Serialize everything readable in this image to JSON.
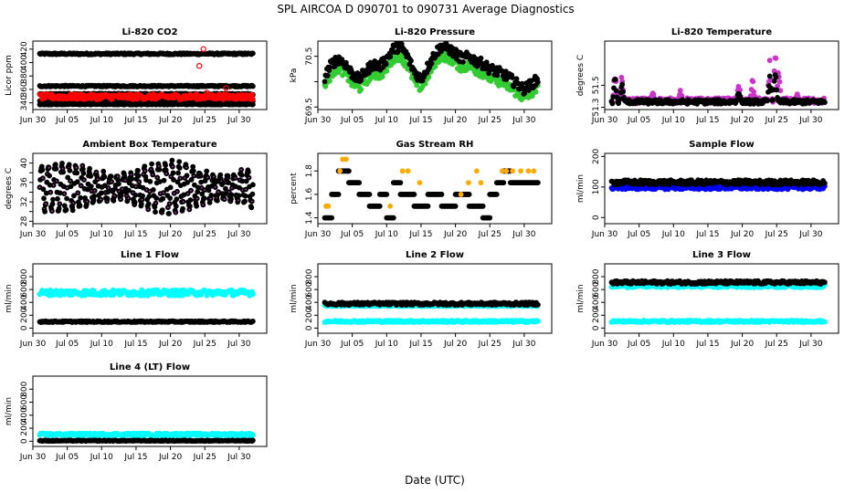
{
  "figure": {
    "title": "SPL   AIRCOA D   090701 to 090731   Average Diagnostics",
    "xlabel": "Date (UTC)"
  },
  "chart_data": [
    {
      "id": "co2",
      "type": "scatter",
      "title": "Li-820 CO2",
      "ylabel": "Licor ppm",
      "ylim": [
        330,
        432
      ],
      "yticks": [
        340,
        360,
        380,
        400,
        420
      ],
      "xticks": [
        "Jun 30",
        "Jul 05",
        "Jul 10",
        "Jul 15",
        "Jul 20",
        "Jul 25",
        "Jul 30"
      ],
      "xlim": [
        0,
        34
      ],
      "xdata_range": [
        1,
        32
      ],
      "series": [
        {
          "name": "level 413",
          "color": "#000000",
          "kind": "band",
          "center": 413,
          "spread": 1.2
        },
        {
          "name": "level 365",
          "color": "#000000",
          "kind": "band",
          "center": 365,
          "spread": 1.0
        },
        {
          "name": "level 353",
          "color": "#000000",
          "kind": "band",
          "center": 353,
          "spread": 1.0
        },
        {
          "name": "level 343",
          "color": "#000000",
          "kind": "band",
          "center": 343,
          "spread": 1.0
        },
        {
          "name": "level 338",
          "color": "#000000",
          "kind": "band",
          "center": 338,
          "spread": 0.8
        },
        {
          "name": "sample",
          "color": "#ff0000",
          "kind": "band",
          "center": 349,
          "spread": 4
        },
        {
          "name": "outliers",
          "color": "#ff0000",
          "kind": "points",
          "open": true,
          "x": [
            24.2,
            24.8,
            25.3,
            28.1
          ],
          "y": [
            395,
            420,
            355,
            362
          ]
        }
      ]
    },
    {
      "id": "pressure",
      "type": "scatter",
      "title": "Li-820 Pressure",
      "ylabel": "kPa",
      "ylim": [
        69.45,
        70.8
      ],
      "yticks": [
        69.5,
        70.0,
        70.5
      ],
      "ytick_labels": [
        "69.5",
        "",
        "70.5"
      ],
      "xticks": [
        "Jun 30",
        "Jul 05",
        "Jul 10",
        "Jul 15",
        "Jul 20",
        "Jul 25",
        "Jul 30"
      ],
      "xlim": [
        0,
        34
      ],
      "xdata_range": [
        1,
        32
      ],
      "series": [
        {
          "name": "green",
          "color": "#33cc33",
          "kind": "curve",
          "offset": -0.18,
          "spread": 0.09,
          "x": [
            1,
            2,
            3,
            4,
            5,
            6,
            7,
            8,
            9,
            10,
            11,
            12,
            13,
            14,
            15,
            16,
            17,
            18,
            19,
            20,
            21,
            22,
            23,
            24,
            25,
            26,
            27,
            28,
            29,
            30,
            31,
            32
          ],
          "y": [
            70.1,
            70.35,
            70.45,
            70.35,
            70.15,
            70.05,
            70.2,
            70.35,
            70.3,
            70.45,
            70.65,
            70.7,
            70.5,
            70.2,
            70.05,
            70.3,
            70.55,
            70.7,
            70.65,
            70.55,
            70.45,
            70.5,
            70.4,
            70.35,
            70.25,
            70.2,
            70.15,
            70.05,
            69.95,
            69.85,
            69.95,
            70.05
          ]
        },
        {
          "name": "black",
          "color": "#000000",
          "kind": "curve",
          "offset": 0.0,
          "spread": 0.1,
          "x": [
            1,
            2,
            3,
            4,
            5,
            6,
            7,
            8,
            9,
            10,
            11,
            12,
            13,
            14,
            15,
            16,
            17,
            18,
            19,
            20,
            21,
            22,
            23,
            24,
            25,
            26,
            27,
            28,
            29,
            30,
            31,
            32
          ],
          "y": [
            70.1,
            70.35,
            70.45,
            70.35,
            70.15,
            70.05,
            70.2,
            70.35,
            70.3,
            70.45,
            70.65,
            70.7,
            70.5,
            70.2,
            70.05,
            70.3,
            70.55,
            70.7,
            70.65,
            70.55,
            70.45,
            70.5,
            70.4,
            70.35,
            70.25,
            70.2,
            70.15,
            70.05,
            69.95,
            69.85,
            69.95,
            70.05
          ]
        }
      ]
    },
    {
      "id": "temp",
      "type": "scatter",
      "title": "Li-820 Temperature",
      "ylabel": "degrees C",
      "ylim": [
        51.28,
        51.9
      ],
      "yticks": [
        51.3,
        51.5
      ],
      "ytick_labels": [
        "51.3",
        "51.5"
      ],
      "xticks": [
        "Jun 30",
        "Jul 05",
        "Jul 10",
        "Jul 15",
        "Jul 20",
        "Jul 25",
        "Jul 30"
      ],
      "xlim": [
        0,
        34
      ],
      "xdata_range": [
        1,
        32
      ],
      "series": [
        {
          "name": "magenta",
          "color": "#cc33cc",
          "kind": "spiky",
          "base": 51.36,
          "spread": 0.025,
          "spikes": [
            [
              1.5,
              51.72
            ],
            [
              2.5,
              51.62
            ],
            [
              7,
              51.45
            ],
            [
              11,
              51.48
            ],
            [
              19.5,
              51.55
            ],
            [
              21.5,
              51.58
            ],
            [
              24,
              51.75
            ],
            [
              24.8,
              51.88
            ],
            [
              25.3,
              51.7
            ],
            [
              28,
              51.42
            ]
          ]
        },
        {
          "name": "black",
          "color": "#000000",
          "kind": "spiky",
          "base": 51.35,
          "spread": 0.02,
          "spikes": [
            [
              1.5,
              51.6
            ],
            [
              2.5,
              51.55
            ],
            [
              19.5,
              51.48
            ],
            [
              24,
              51.65
            ],
            [
              24.8,
              51.72
            ]
          ]
        }
      ]
    },
    {
      "id": "ambient",
      "type": "scatter",
      "title": "Ambient Box Temperature",
      "ylabel": "degrees C",
      "ylim": [
        27.5,
        42
      ],
      "yticks": [
        28,
        30,
        32,
        34,
        36,
        38,
        40
      ],
      "ytick_labels": [
        "28",
        "",
        "32",
        "",
        "36",
        "",
        "40"
      ],
      "xticks": [
        "Jun 30",
        "Jul 05",
        "Jul 10",
        "Jul 15",
        "Jul 20",
        "Jul 25",
        "Jul 30"
      ],
      "xlim": [
        0,
        34
      ],
      "xdata_range": [
        1,
        32
      ],
      "series": [
        {
          "name": "black",
          "color": "#000000",
          "kind": "diurnal",
          "low": 30,
          "high": 40,
          "dots": "#cc33cc"
        }
      ]
    },
    {
      "id": "rh",
      "type": "scatter",
      "title": "Gas Stream RH",
      "ylabel": "percent",
      "ylim": [
        1.35,
        1.95
      ],
      "yticks": [
        1.4,
        1.6,
        1.8
      ],
      "ytick_labels": [
        "1.4",
        "1.6",
        "1.8"
      ],
      "xticks": [
        "Jun 30",
        "Jul 05",
        "Jul 10",
        "Jul 15",
        "Jul 20",
        "Jul 25",
        "Jul 30"
      ],
      "xlim": [
        0,
        34
      ],
      "xdata_range": [
        1,
        32
      ],
      "series": [
        {
          "name": "black",
          "color": "#000000",
          "kind": "steps",
          "segments": [
            [
              1,
              2,
              1.4
            ],
            [
              2,
              3,
              1.6
            ],
            [
              3,
              4.5,
              1.8
            ],
            [
              4.5,
              6,
              1.7
            ],
            [
              6,
              7.5,
              1.6
            ],
            [
              7.5,
              9,
              1.5
            ],
            [
              9,
              10,
              1.6
            ],
            [
              10,
              11,
              1.4
            ],
            [
              11,
              12,
              1.7
            ],
            [
              12,
              14,
              1.6
            ],
            [
              14,
              16,
              1.5
            ],
            [
              16,
              18,
              1.6
            ],
            [
              18,
              20,
              1.5
            ],
            [
              20,
              22,
              1.6
            ],
            [
              22,
              24,
              1.5
            ],
            [
              24,
              25,
              1.4
            ],
            [
              25,
              26,
              1.6
            ],
            [
              26,
              27,
              1.7
            ],
            [
              27,
              28,
              1.8
            ],
            [
              28,
              32,
              1.7
            ]
          ]
        },
        {
          "name": "orange",
          "color": "#ffaa00",
          "kind": "points",
          "open": false,
          "x": [
            3.2,
            3.6,
            4.1,
            12.3,
            13.1,
            14.8,
            21.9,
            23.1,
            23.7,
            26.8,
            27.4,
            28.3,
            29.5,
            30.6,
            31.4,
            1.2,
            1.5,
            10.5,
            20.8
          ],
          "y": [
            1.8,
            1.9,
            1.9,
            1.8,
            1.8,
            1.7,
            1.7,
            1.8,
            1.7,
            1.8,
            1.8,
            1.8,
            1.8,
            1.8,
            1.8,
            1.5,
            1.5,
            1.5,
            1.6
          ]
        }
      ]
    },
    {
      "id": "sample",
      "type": "scatter",
      "title": "Sample Flow",
      "ylabel": "ml/min",
      "ylim": [
        -20,
        210
      ],
      "yticks": [
        0,
        100,
        200
      ],
      "ytick_labels": [
        "0",
        "100",
        "200"
      ],
      "xticks": [
        "Jun 30",
        "Jul 05",
        "Jul 10",
        "Jul 15",
        "Jul 20",
        "Jul 25",
        "Jul 30"
      ],
      "xlim": [
        0,
        34
      ],
      "xdata_range": [
        1,
        32
      ],
      "series": [
        {
          "name": "blue",
          "color": "#0000ff",
          "kind": "band",
          "center": 98,
          "spread": 6
        },
        {
          "name": "black",
          "color": "#000000",
          "kind": "band",
          "center": 115,
          "spread": 8
        }
      ]
    },
    {
      "id": "line1",
      "type": "scatter",
      "title": "Line 1 Flow",
      "ylabel": "ml/min",
      "ylim": [
        -80,
        1000
      ],
      "yticks": [
        0,
        200,
        400,
        600,
        800
      ],
      "ytick_labels": [
        "0",
        "200",
        "400",
        "600",
        "800"
      ],
      "xticks": [
        "Jun 30",
        "Jul 05",
        "Jul 10",
        "Jul 15",
        "Jul 20",
        "Jul 25",
        "Jul 30"
      ],
      "xlim": [
        0,
        34
      ],
      "xdata_range": [
        1,
        32
      ],
      "series": [
        {
          "name": "cyan",
          "color": "#00ffff",
          "kind": "band",
          "center": 550,
          "spread": 45
        },
        {
          "name": "black",
          "color": "#000000",
          "kind": "band",
          "center": 100,
          "spread": 10
        }
      ]
    },
    {
      "id": "line2",
      "type": "scatter",
      "title": "Line 2 Flow",
      "ylabel": "ml/min",
      "ylim": [
        -80,
        1000
      ],
      "yticks": [
        0,
        200,
        400,
        600,
        800
      ],
      "ytick_labels": [
        "0",
        "200",
        "400",
        "600",
        "800"
      ],
      "xticks": [
        "Jun 30",
        "Jul 05",
        "Jul 10",
        "Jul 15",
        "Jul 20",
        "Jul 25",
        "Jul 30"
      ],
      "xlim": [
        0,
        34
      ],
      "xdata_range": [
        1,
        32
      ],
      "series": [
        {
          "name": "cyan",
          "color": "#00ffff",
          "kind": "band",
          "center": 105,
          "spread": 15
        },
        {
          "name": "cyan2",
          "color": "#00ffff",
          "kind": "band",
          "center": 350,
          "spread": 12
        },
        {
          "name": "black",
          "color": "#000000",
          "kind": "band",
          "center": 380,
          "spread": 22
        }
      ]
    },
    {
      "id": "line3",
      "type": "scatter",
      "title": "Line 3 Flow",
      "ylabel": "ml/min",
      "ylim": [
        -80,
        1000
      ],
      "yticks": [
        0,
        200,
        400,
        600,
        800
      ],
      "ytick_labels": [
        "0",
        "200",
        "400",
        "600",
        "800"
      ],
      "xticks": [
        "Jun 30",
        "Jul 05",
        "Jul 10",
        "Jul 15",
        "Jul 20",
        "Jul 25",
        "Jul 30"
      ],
      "xlim": [
        0,
        34
      ],
      "xdata_range": [
        1,
        32
      ],
      "series": [
        {
          "name": "cyan",
          "color": "#00ffff",
          "kind": "band",
          "center": 105,
          "spread": 15
        },
        {
          "name": "cyan2",
          "color": "#00ffff",
          "kind": "band",
          "center": 660,
          "spread": 30
        },
        {
          "name": "black",
          "color": "#000000",
          "kind": "band",
          "center": 710,
          "spread": 25
        }
      ]
    },
    {
      "id": "line4",
      "type": "scatter",
      "title": "Line 4 (LT) Flow",
      "ylabel": "ml/min",
      "ylim": [
        -80,
        1000
      ],
      "yticks": [
        0,
        200,
        400,
        600,
        800
      ],
      "ytick_labels": [
        "0",
        "200",
        "400",
        "600",
        "800"
      ],
      "xticks": [
        "Jun 30",
        "Jul 05",
        "Jul 10",
        "Jul 15",
        "Jul 20",
        "Jul 25",
        "Jul 30"
      ],
      "xlim": [
        0,
        34
      ],
      "xdata_range": [
        1,
        32
      ],
      "series": [
        {
          "name": "cyan",
          "color": "#00ffff",
          "kind": "band",
          "center": 105,
          "spread": 18
        },
        {
          "name": "black",
          "color": "#000000",
          "kind": "band",
          "center": 8,
          "spread": 6
        }
      ]
    }
  ]
}
